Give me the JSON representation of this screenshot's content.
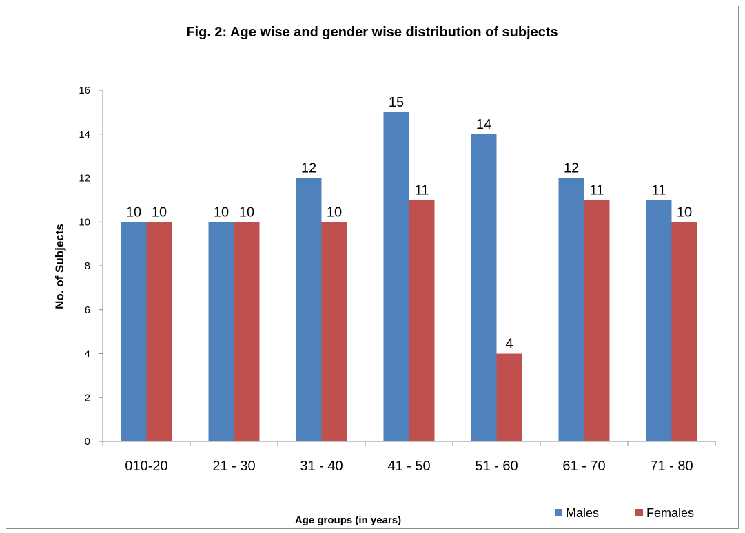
{
  "chart_data": {
    "type": "bar",
    "title": "Fig. 2: Age wise and gender wise distribution of subjects",
    "xlabel": "Age groups (in years)",
    "ylabel": "No. of Subjects",
    "categories": [
      "010-20",
      "21 - 30",
      "31 - 40",
      "41 - 50",
      "51 - 60",
      "61 - 70",
      "71 - 80"
    ],
    "series": [
      {
        "name": "Males",
        "color": "#4f81bd",
        "values": [
          10,
          10,
          12,
          15,
          14,
          12,
          11
        ]
      },
      {
        "name": "Females",
        "color": "#c0504d",
        "values": [
          10,
          10,
          10,
          11,
          4,
          11,
          10
        ]
      }
    ],
    "ylim": [
      0,
      16
    ],
    "yticks": [
      0,
      2,
      4,
      6,
      8,
      10,
      12,
      14,
      16
    ],
    "grid": false,
    "legend": "bottom-right",
    "data_labels": true
  }
}
